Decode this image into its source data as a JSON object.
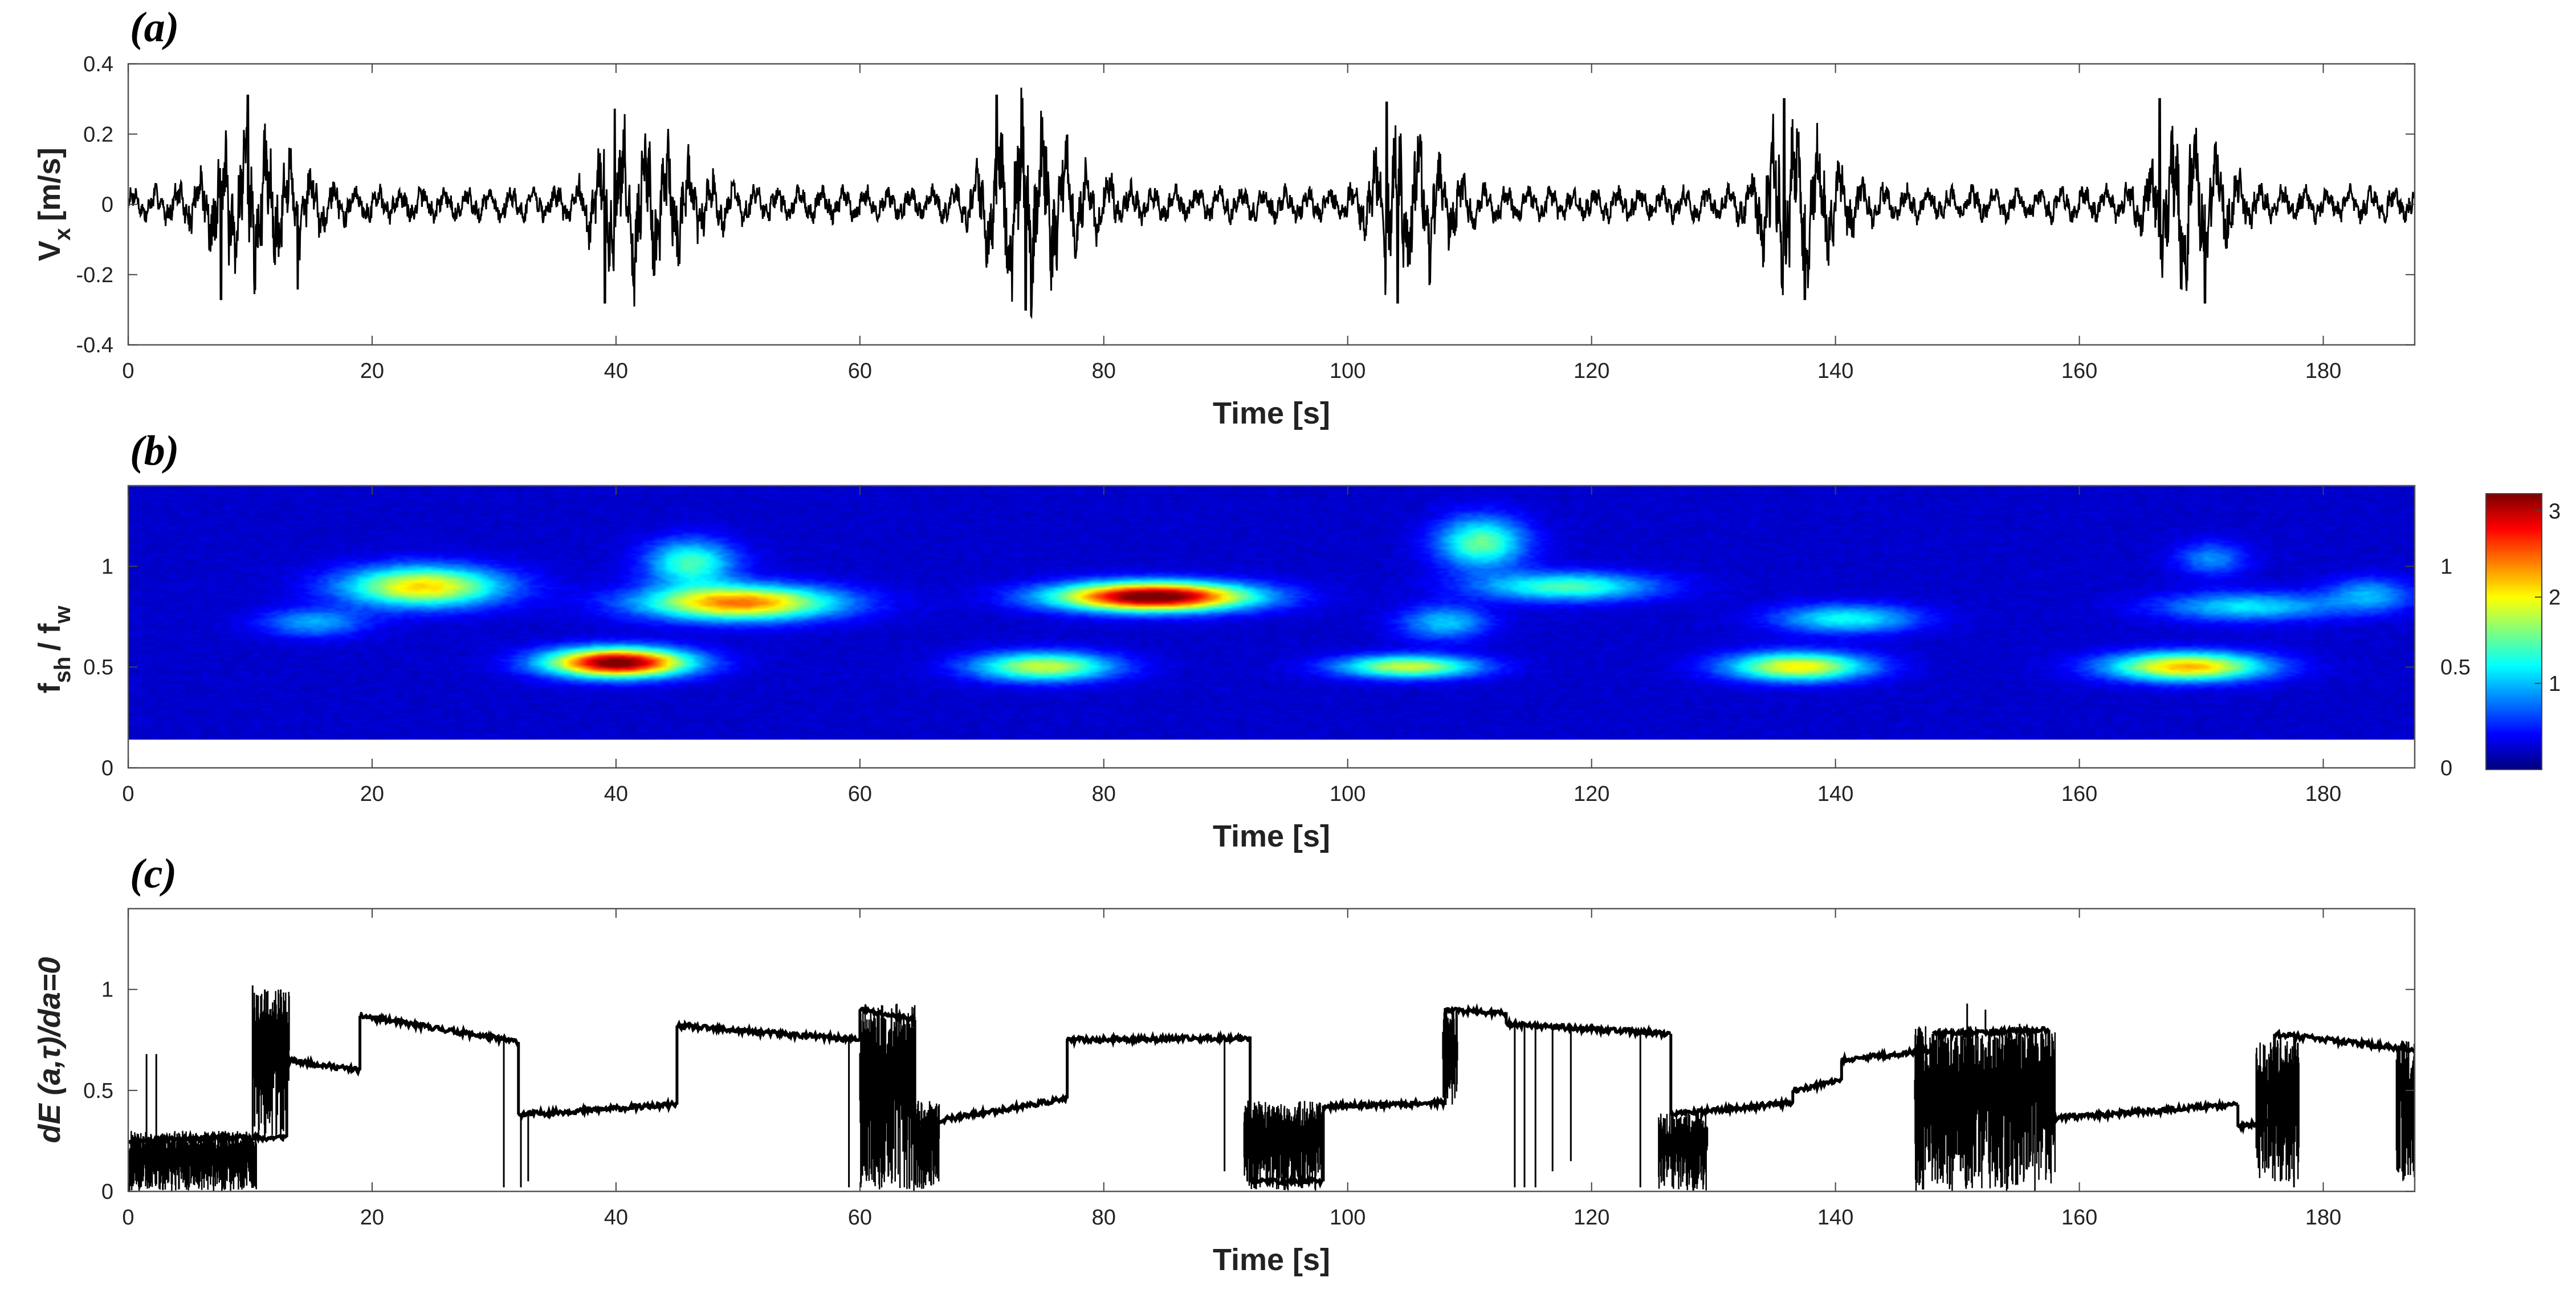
{
  "chart_data": [
    {
      "panel": "(a)",
      "type": "line",
      "xlabel": "Time [s]",
      "ylabel": "V",
      "ylabel_sub": "x",
      "ylabel_unit": "[m/s]",
      "xlim": [
        0,
        187.5
      ],
      "ylim": [
        -0.4,
        0.4
      ],
      "xticks": [
        0,
        20,
        40,
        60,
        80,
        100,
        120,
        140,
        160,
        180
      ],
      "yticks": [
        -0.4,
        -0.2,
        0,
        0.2,
        0.4
      ],
      "ytick_labels": [
        "-0.4",
        "-0.2",
        "0",
        "0.2",
        "0.4"
      ],
      "signal": {
        "description_free": true,
        "base_amplitude": 0.05,
        "bursts": [
          {
            "center": 9,
            "amplitude": 0.18,
            "width": 5
          },
          {
            "center": 41,
            "amplitude": 0.2,
            "width": 5
          },
          {
            "center": 73,
            "amplitude": 0.23,
            "width": 5
          },
          {
            "center": 104,
            "amplitude": 0.2,
            "width": 4
          },
          {
            "center": 136,
            "amplitude": 0.2,
            "width": 4
          },
          {
            "center": 168,
            "amplitude": 0.2,
            "width": 4
          }
        ],
        "peaks": [
          {
            "t": 9.8,
            "v": 0.31
          },
          {
            "t": 7.6,
            "v": -0.27
          },
          {
            "t": 13.9,
            "v": -0.24
          },
          {
            "t": 39.9,
            "v": 0.27
          },
          {
            "t": 39.1,
            "v": -0.28
          },
          {
            "t": 71.2,
            "v": 0.31
          },
          {
            "t": 73.6,
            "v": -0.3
          },
          {
            "t": 103.2,
            "v": 0.29
          },
          {
            "t": 104.1,
            "v": -0.28
          },
          {
            "t": 135.8,
            "v": 0.3
          },
          {
            "t": 137.5,
            "v": -0.27
          },
          {
            "t": 166.6,
            "v": 0.3
          },
          {
            "t": 170.3,
            "v": -0.28
          }
        ]
      }
    },
    {
      "panel": "(b)",
      "type": "heatmap",
      "xlabel": "Time [s]",
      "ylabel": "f",
      "ylabel_sub1": "sh",
      "ylabel_mid": "/ f",
      "ylabel_sub2": "w",
      "xlim": [
        0,
        187.5
      ],
      "ylim": [
        0,
        1.4
      ],
      "data_ylim": [
        0.14,
        1.4
      ],
      "xticks": [
        0,
        20,
        40,
        60,
        80,
        100,
        120,
        140,
        160,
        180
      ],
      "yticks": [
        0,
        0.5,
        1
      ],
      "ytick_labels": [
        "0",
        "0.5",
        "1"
      ],
      "right_yticks": [
        0,
        0.5,
        1
      ],
      "right_ytick_labels": [
        "0",
        "0.5",
        "1"
      ],
      "colorbar": {
        "min": 0,
        "max": 3.2,
        "ticks": [
          1,
          2,
          3
        ],
        "tick_labels": [
          "1",
          "2",
          "3"
        ],
        "colormap": "jet"
      },
      "hotspots": [
        {
          "t": 24,
          "f": 0.9,
          "value": 1.9,
          "t_spread": 4.5,
          "f_spread": 0.07
        },
        {
          "t": 15,
          "f": 0.72,
          "value": 0.7,
          "t_spread": 3,
          "f_spread": 0.05
        },
        {
          "t": 40,
          "f": 0.52,
          "value": 3.1,
          "t_spread": 4,
          "f_spread": 0.05
        },
        {
          "t": 46,
          "f": 1.02,
          "value": 1.2,
          "t_spread": 2.5,
          "f_spread": 0.08
        },
        {
          "t": 50,
          "f": 0.82,
          "value": 2.2,
          "t_spread": 5.5,
          "f_spread": 0.06
        },
        {
          "t": 84,
          "f": 0.85,
          "value": 3.2,
          "t_spread": 5.5,
          "f_spread": 0.05
        },
        {
          "t": 75,
          "f": 0.5,
          "value": 1.6,
          "t_spread": 4,
          "f_spread": 0.05
        },
        {
          "t": 105,
          "f": 0.5,
          "value": 1.6,
          "t_spread": 4,
          "f_spread": 0.04
        },
        {
          "t": 111,
          "f": 1.12,
          "value": 1.3,
          "t_spread": 2.5,
          "f_spread": 0.09
        },
        {
          "t": 118,
          "f": 0.9,
          "value": 1.2,
          "t_spread": 5,
          "f_spread": 0.05
        },
        {
          "t": 108,
          "f": 0.72,
          "value": 0.8,
          "t_spread": 2.5,
          "f_spread": 0.06
        },
        {
          "t": 137,
          "f": 0.5,
          "value": 1.8,
          "t_spread": 4,
          "f_spread": 0.05
        },
        {
          "t": 141,
          "f": 0.74,
          "value": 1.0,
          "t_spread": 4,
          "f_spread": 0.05
        },
        {
          "t": 169,
          "f": 0.5,
          "value": 2.0,
          "t_spread": 4.5,
          "f_spread": 0.05
        },
        {
          "t": 174,
          "f": 0.8,
          "value": 0.9,
          "t_spread": 5,
          "f_spread": 0.05
        },
        {
          "t": 184,
          "f": 0.86,
          "value": 0.7,
          "t_spread": 2.5,
          "f_spread": 0.06
        },
        {
          "t": 171,
          "f": 1.04,
          "value": 0.6,
          "t_spread": 2,
          "f_spread": 0.06
        }
      ]
    },
    {
      "panel": "(c)",
      "type": "line",
      "xlabel": "Time [s]",
      "ylabel": "dE (a,τ)/da=0",
      "xlim": [
        0,
        187.5
      ],
      "ylim": [
        0,
        1.4
      ],
      "xticks": [
        0,
        20,
        40,
        60,
        80,
        100,
        120,
        140,
        160,
        180
      ],
      "yticks": [
        0,
        0.5,
        1
      ],
      "ytick_labels": [
        "0",
        "0.5",
        "1"
      ],
      "segments": [
        {
          "t0": 0,
          "t1": 10.5,
          "v0": 0.25,
          "v1": 0.27
        },
        {
          "t0": 10.5,
          "t1": 13,
          "v0": 0.26,
          "v1": 0.27
        },
        {
          "t0": 13,
          "t1": 19,
          "v0": 0.65,
          "v1": 0.6
        },
        {
          "t0": 19,
          "t1": 32,
          "v0": 0.87,
          "v1": 0.74
        },
        {
          "t0": 32,
          "t1": 45,
          "v0": 0.38,
          "v1": 0.43
        },
        {
          "t0": 45,
          "t1": 60,
          "v0": 0.82,
          "v1": 0.75
        },
        {
          "t0": 60,
          "t1": 64.5,
          "v0": 0.9,
          "v1": 0.85
        },
        {
          "t0": 64.5,
          "t1": 77,
          "v0": 0.33,
          "v1": 0.46
        },
        {
          "t0": 77,
          "t1": 92,
          "v0": 0.75,
          "v1": 0.76
        },
        {
          "t0": 92,
          "t1": 98,
          "v0": 0.05,
          "v1": 0.05
        },
        {
          "t0": 98,
          "t1": 108,
          "v0": 0.42,
          "v1": 0.44
        },
        {
          "t0": 108,
          "t1": 113,
          "v0": 0.9,
          "v1": 0.88
        },
        {
          "t0": 113,
          "t1": 126.5,
          "v0": 0.83,
          "v1": 0.78
        },
        {
          "t0": 126.5,
          "t1": 136.5,
          "v0": 0.38,
          "v1": 0.44
        },
        {
          "t0": 136.5,
          "t1": 140.5,
          "v0": 0.5,
          "v1": 0.55
        },
        {
          "t0": 140.5,
          "t1": 148,
          "v0": 0.65,
          "v1": 0.7
        },
        {
          "t0": 148,
          "t1": 157.5,
          "v0": 0.78,
          "v1": 0.8
        },
        {
          "t0": 157.5,
          "t1": 173,
          "v0": 0.36,
          "v1": 0.43
        },
        {
          "t0": 173,
          "t1": 176,
          "v0": 0.32,
          "v1": 0.35
        },
        {
          "t0": 176,
          "t1": 187.5,
          "v0": 0.78,
          "v1": 0.7
        }
      ],
      "jitter_zones": [
        {
          "t0": 0,
          "t1": 10.5,
          "low": 0.0,
          "high": 0.3
        },
        {
          "t0": 10.3,
          "t1": 13.2,
          "low": 0.25,
          "high": 1.0
        },
        {
          "t0": 60,
          "t1": 64.5,
          "low": 0.0,
          "high": 0.93
        },
        {
          "t0": 64.5,
          "t1": 66.5,
          "low": 0.0,
          "high": 0.45
        },
        {
          "t0": 91.5,
          "t1": 98,
          "low": 0.0,
          "high": 0.45
        },
        {
          "t0": 107.8,
          "t1": 109,
          "low": 0.43,
          "high": 0.9
        },
        {
          "t0": 125.5,
          "t1": 129.5,
          "low": 0.0,
          "high": 0.4
        },
        {
          "t0": 146.5,
          "t1": 158,
          "low": 0.0,
          "high": 0.82
        },
        {
          "t0": 174.5,
          "t1": 178,
          "low": 0.05,
          "high": 0.75
        },
        {
          "t0": 186,
          "t1": 187.5,
          "low": 0.05,
          "high": 0.75
        }
      ],
      "spikes": [
        {
          "t": 1.5,
          "v": 0.68
        },
        {
          "t": 2.3,
          "v": 0.68
        },
        {
          "t": 10.2,
          "v": 1.02
        },
        {
          "t": 11.2,
          "v": 1.0
        },
        {
          "t": 12.5,
          "v": 1.0
        },
        {
          "t": 30.8,
          "v": 0.02
        },
        {
          "t": 32.2,
          "v": 0.02
        },
        {
          "t": 32.8,
          "v": 0.05
        },
        {
          "t": 59.1,
          "v": 0.02
        },
        {
          "t": 65.7,
          "v": 0.05
        },
        {
          "t": 89.9,
          "v": 0.1
        },
        {
          "t": 91.2,
          "v": 0.78
        },
        {
          "t": 113.7,
          "v": 0.02
        },
        {
          "t": 114.5,
          "v": 0.02
        },
        {
          "t": 115.4,
          "v": 0.02
        },
        {
          "t": 116.8,
          "v": 0.1
        },
        {
          "t": 118.3,
          "v": 0.15
        },
        {
          "t": 124.0,
          "v": 0.02
        },
        {
          "t": 150.8,
          "v": 0.93
        },
        {
          "t": 152.3,
          "v": 0.9
        },
        {
          "t": 155.1,
          "v": 0.83
        },
        {
          "t": 176.5,
          "v": 0.05
        },
        {
          "t": 177.6,
          "v": 0.02
        }
      ]
    }
  ]
}
